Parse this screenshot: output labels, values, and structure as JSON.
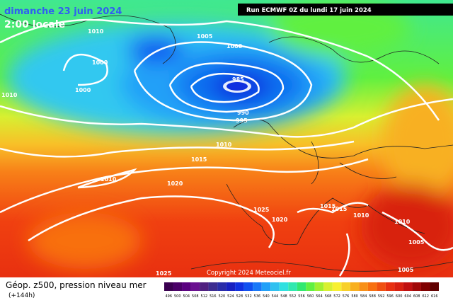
{
  "header": {
    "date": "dimanche 23 juin 2024",
    "time": "2:00 locale",
    "run": "Run ECMWF 0Z du lundi 17 juin 2024"
  },
  "footer": {
    "title": "Géop. z500, pression niveau mer",
    "lead": "(+144h)",
    "copyright": "Copyright 2024 Meteociel.fr"
  },
  "isobars": [
    "1010",
    "1005",
    "1000",
    "1000",
    "1000",
    "985",
    "990",
    "995",
    "1010",
    "1010",
    "1015",
    "1010",
    "1020",
    "1025",
    "1020",
    "1015",
    "1015",
    "1010",
    "1010",
    "1005",
    "1005",
    "1025"
  ],
  "legend": {
    "items": [
      {
        "label": "496",
        "color": "#3a0050"
      },
      {
        "label": "500",
        "color": "#4a0068"
      },
      {
        "label": "504",
        "color": "#5a0080"
      },
      {
        "label": "508",
        "color": "#6a1090"
      },
      {
        "label": "512",
        "color": "#502080"
      },
      {
        "label": "516",
        "color": "#3c2c90"
      },
      {
        "label": "520",
        "color": "#2a2ca8"
      },
      {
        "label": "524",
        "color": "#1820c0"
      },
      {
        "label": "528",
        "color": "#1030e0"
      },
      {
        "label": "532",
        "color": "#1050f0"
      },
      {
        "label": "536",
        "color": "#1878f8"
      },
      {
        "label": "540",
        "color": "#20a0f8"
      },
      {
        "label": "544",
        "color": "#30c0f0"
      },
      {
        "label": "548",
        "color": "#30e0e0"
      },
      {
        "label": "552",
        "color": "#30e8b0"
      },
      {
        "label": "556",
        "color": "#30e870"
      },
      {
        "label": "560",
        "color": "#60f040"
      },
      {
        "label": "564",
        "color": "#a0f030"
      },
      {
        "label": "568",
        "color": "#d8f030"
      },
      {
        "label": "572",
        "color": "#f8f030"
      },
      {
        "label": "576",
        "color": "#f8d028"
      },
      {
        "label": "580",
        "color": "#f8b020"
      },
      {
        "label": "584",
        "color": "#f89018"
      },
      {
        "label": "588",
        "color": "#f87010"
      },
      {
        "label": "592",
        "color": "#f05010"
      },
      {
        "label": "596",
        "color": "#e83010"
      },
      {
        "label": "600",
        "color": "#d82010"
      },
      {
        "label": "604",
        "color": "#c01010"
      },
      {
        "label": "608",
        "color": "#a00808"
      },
      {
        "label": "612",
        "color": "#800000"
      },
      {
        "label": "616",
        "color": "#600000"
      }
    ]
  }
}
